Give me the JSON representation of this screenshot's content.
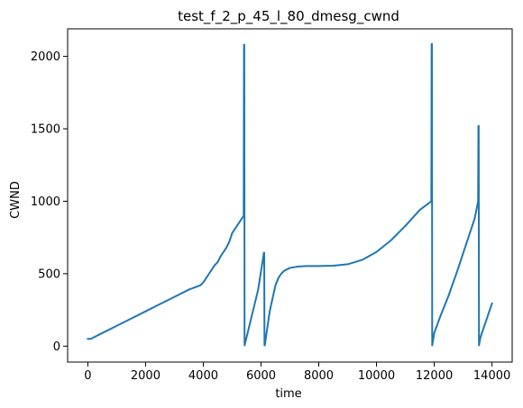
{
  "chart_data": {
    "type": "line",
    "title": "test_f_2_p_45_l_80_dmesg_cwnd",
    "xlabel": "time",
    "ylabel": "CWND",
    "xlim": [
      -700,
      14700
    ],
    "ylim": [
      -110,
      2190
    ],
    "x_ticks": [
      0,
      2000,
      4000,
      6000,
      8000,
      10000,
      12000,
      14000
    ],
    "y_ticks": [
      0,
      500,
      1000,
      1500,
      2000
    ],
    "grid": false,
    "legend": "none",
    "series": [
      {
        "color": "#1f77b4",
        "x": [
          0,
          100,
          500,
          1000,
          1500,
          2000,
          2500,
          3000,
          3500,
          3900,
          4000,
          4100,
          4200,
          4300,
          4400,
          4500,
          4600,
          4700,
          4800,
          4900,
          5000,
          5100,
          5200,
          5300,
          5400,
          5410,
          5420,
          5430,
          5900,
          6100,
          6110,
          6120,
          6130,
          6300,
          6500,
          6600,
          6700,
          6800,
          7000,
          7300,
          7600,
          8000,
          8500,
          9000,
          9500,
          10000,
          10500,
          11000,
          11500,
          11900,
          11910,
          11920,
          11930,
          12000,
          12200,
          12500,
          12800,
          13100,
          13400,
          13520,
          13530,
          13540,
          13550,
          13600,
          14000
        ],
        "y": [
          50,
          50,
          90,
          140,
          190,
          240,
          290,
          340,
          390,
          420,
          440,
          470,
          500,
          530,
          560,
          580,
          620,
          650,
          680,
          720,
          780,
          810,
          840,
          870,
          900,
          2080,
          2080,
          5,
          390,
          645,
          645,
          5,
          5,
          240,
          420,
          470,
          500,
          520,
          540,
          550,
          553,
          553,
          555,
          565,
          595,
          650,
          730,
          830,
          940,
          1000,
          2085,
          2085,
          5,
          90,
          200,
          350,
          520,
          700,
          880,
          1000,
          1520,
          1520,
          5,
          60,
          295
        ]
      }
    ]
  }
}
